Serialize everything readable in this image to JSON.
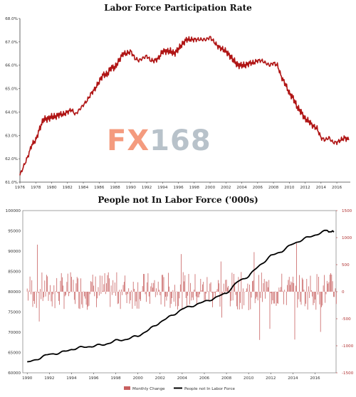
{
  "watermark": {
    "part1": "FX",
    "part2": "168"
  },
  "colors": {
    "line_top": "#b01515",
    "bars": "#c86060",
    "line_bottom": "#000000",
    "right_axis": "#b03030"
  },
  "chart_data": [
    {
      "type": "line",
      "title": "Labor Force Participation Rate",
      "xlabel": "",
      "ylabel": "",
      "xlim": [
        1976,
        2017.7
      ],
      "ylim": [
        61.0,
        68.0
      ],
      "grid": false,
      "x_ticks": [
        "1976",
        "1978",
        "1980",
        "1982",
        "1984",
        "1986",
        "1988",
        "1990",
        "1992",
        "1994",
        "1996",
        "1998",
        "2000",
        "2002",
        "2004",
        "2006",
        "2008",
        "2010",
        "2012",
        "2014",
        "2016"
      ],
      "y_ticks": [
        "61.0%",
        "62.0%",
        "63.0%",
        "64.0%",
        "65.0%",
        "66.0%",
        "67.0%",
        "68.0%"
      ],
      "series": [
        {
          "x": [
            1976.0,
            1976.5,
            1977.0,
            1977.5,
            1978.0,
            1978.5,
            1979.0,
            1979.5,
            1980.0,
            1980.5,
            1981.0,
            1981.5,
            1982.0,
            1982.5,
            1983.0,
            1983.5,
            1984.0,
            1984.5,
            1985.0,
            1985.5,
            1986.0,
            1986.5,
            1987.0,
            1987.5,
            1988.0,
            1988.5,
            1989.0,
            1989.5,
            1990.0,
            1990.5,
            1991.0,
            1991.5,
            1992.0,
            1992.5,
            1993.0,
            1993.5,
            1994.0,
            1994.5,
            1995.0,
            1995.5,
            1996.0,
            1996.5,
            1997.0,
            1997.5,
            1998.0,
            1998.5,
            1999.0,
            1999.5,
            2000.0,
            2000.5,
            2001.0,
            2001.5,
            2002.0,
            2002.5,
            2003.0,
            2003.5,
            2004.0,
            2004.5,
            2005.0,
            2005.5,
            2006.0,
            2006.5,
            2007.0,
            2007.5,
            2008.0,
            2008.5,
            2009.0,
            2009.5,
            2010.0,
            2010.5,
            2011.0,
            2011.5,
            2012.0,
            2012.5,
            2013.0,
            2013.5,
            2014.0,
            2014.5,
            2015.0,
            2015.5,
            2016.0,
            2016.5,
            2017.0,
            2017.5
          ],
          "values": [
            61.3,
            61.7,
            62.1,
            62.6,
            62.8,
            63.3,
            63.7,
            63.7,
            63.8,
            63.8,
            63.9,
            63.9,
            64.0,
            64.1,
            63.9,
            64.1,
            64.3,
            64.5,
            64.8,
            65.0,
            65.3,
            65.6,
            65.6,
            65.9,
            65.9,
            66.2,
            66.5,
            66.5,
            66.6,
            66.3,
            66.2,
            66.3,
            66.4,
            66.2,
            66.2,
            66.3,
            66.6,
            66.6,
            66.6,
            66.5,
            66.7,
            66.9,
            67.1,
            67.1,
            67.1,
            67.1,
            67.1,
            67.1,
            67.2,
            67.0,
            66.8,
            66.7,
            66.6,
            66.4,
            66.2,
            66.0,
            66.0,
            66.0,
            66.1,
            66.1,
            66.2,
            66.2,
            66.1,
            66.0,
            66.1,
            66.0,
            65.5,
            65.2,
            64.8,
            64.6,
            64.2,
            64.0,
            63.7,
            63.6,
            63.4,
            63.3,
            62.9,
            62.8,
            62.9,
            62.7,
            62.7,
            62.8,
            62.9,
            62.8
          ]
        }
      ]
    },
    {
      "type": "bar",
      "title": "People not In Labor Force ('000s)",
      "xlabel": "",
      "ylabel": "",
      "xlim": [
        1989.6,
        2017.9
      ],
      "ylim": [
        60000,
        100000
      ],
      "ylim_right": [
        -1500,
        1500
      ],
      "grid": false,
      "legend_position": "bottom-center",
      "legend": [
        "Monthly Change",
        "People not In Labor Force"
      ],
      "x_ticks": [
        "1990",
        "1992",
        "1994",
        "1996",
        "1998",
        "2000",
        "2002",
        "2004",
        "2006",
        "2008",
        "2010",
        "2012",
        "2014",
        "2016"
      ],
      "y_ticks": [
        "60000",
        "65000",
        "70000",
        "75000",
        "80000",
        "85000",
        "90000",
        "95000",
        "100000"
      ],
      "y_ticks_right": [
        "1500",
        "1000",
        "500",
        "0",
        "-500",
        "-1000",
        "-1500"
      ],
      "series": [
        {
          "name": "People not In Labor Force",
          "axis": "left",
          "x": [
            1990.0,
            1991.0,
            1992.0,
            1993.0,
            1994.0,
            1995.0,
            1996.0,
            1997.0,
            1998.0,
            1999.0,
            2000.0,
            2001.0,
            2002.0,
            2003.0,
            2004.0,
            2005.0,
            2006.0,
            2007.0,
            2008.0,
            2009.0,
            2010.0,
            2011.0,
            2012.0,
            2013.0,
            2014.0,
            2015.0,
            2016.0,
            2017.0,
            2017.7
          ],
          "values": [
            62500,
            63500,
            64600,
            64900,
            65800,
            66300,
            66600,
            67000,
            67900,
            68300,
            69100,
            70600,
            72500,
            74000,
            75700,
            76600,
            77500,
            78500,
            79700,
            82400,
            83900,
            86500,
            88800,
            90000,
            91800,
            93000,
            94000,
            95000,
            94700
          ]
        }
      ]
    }
  ]
}
